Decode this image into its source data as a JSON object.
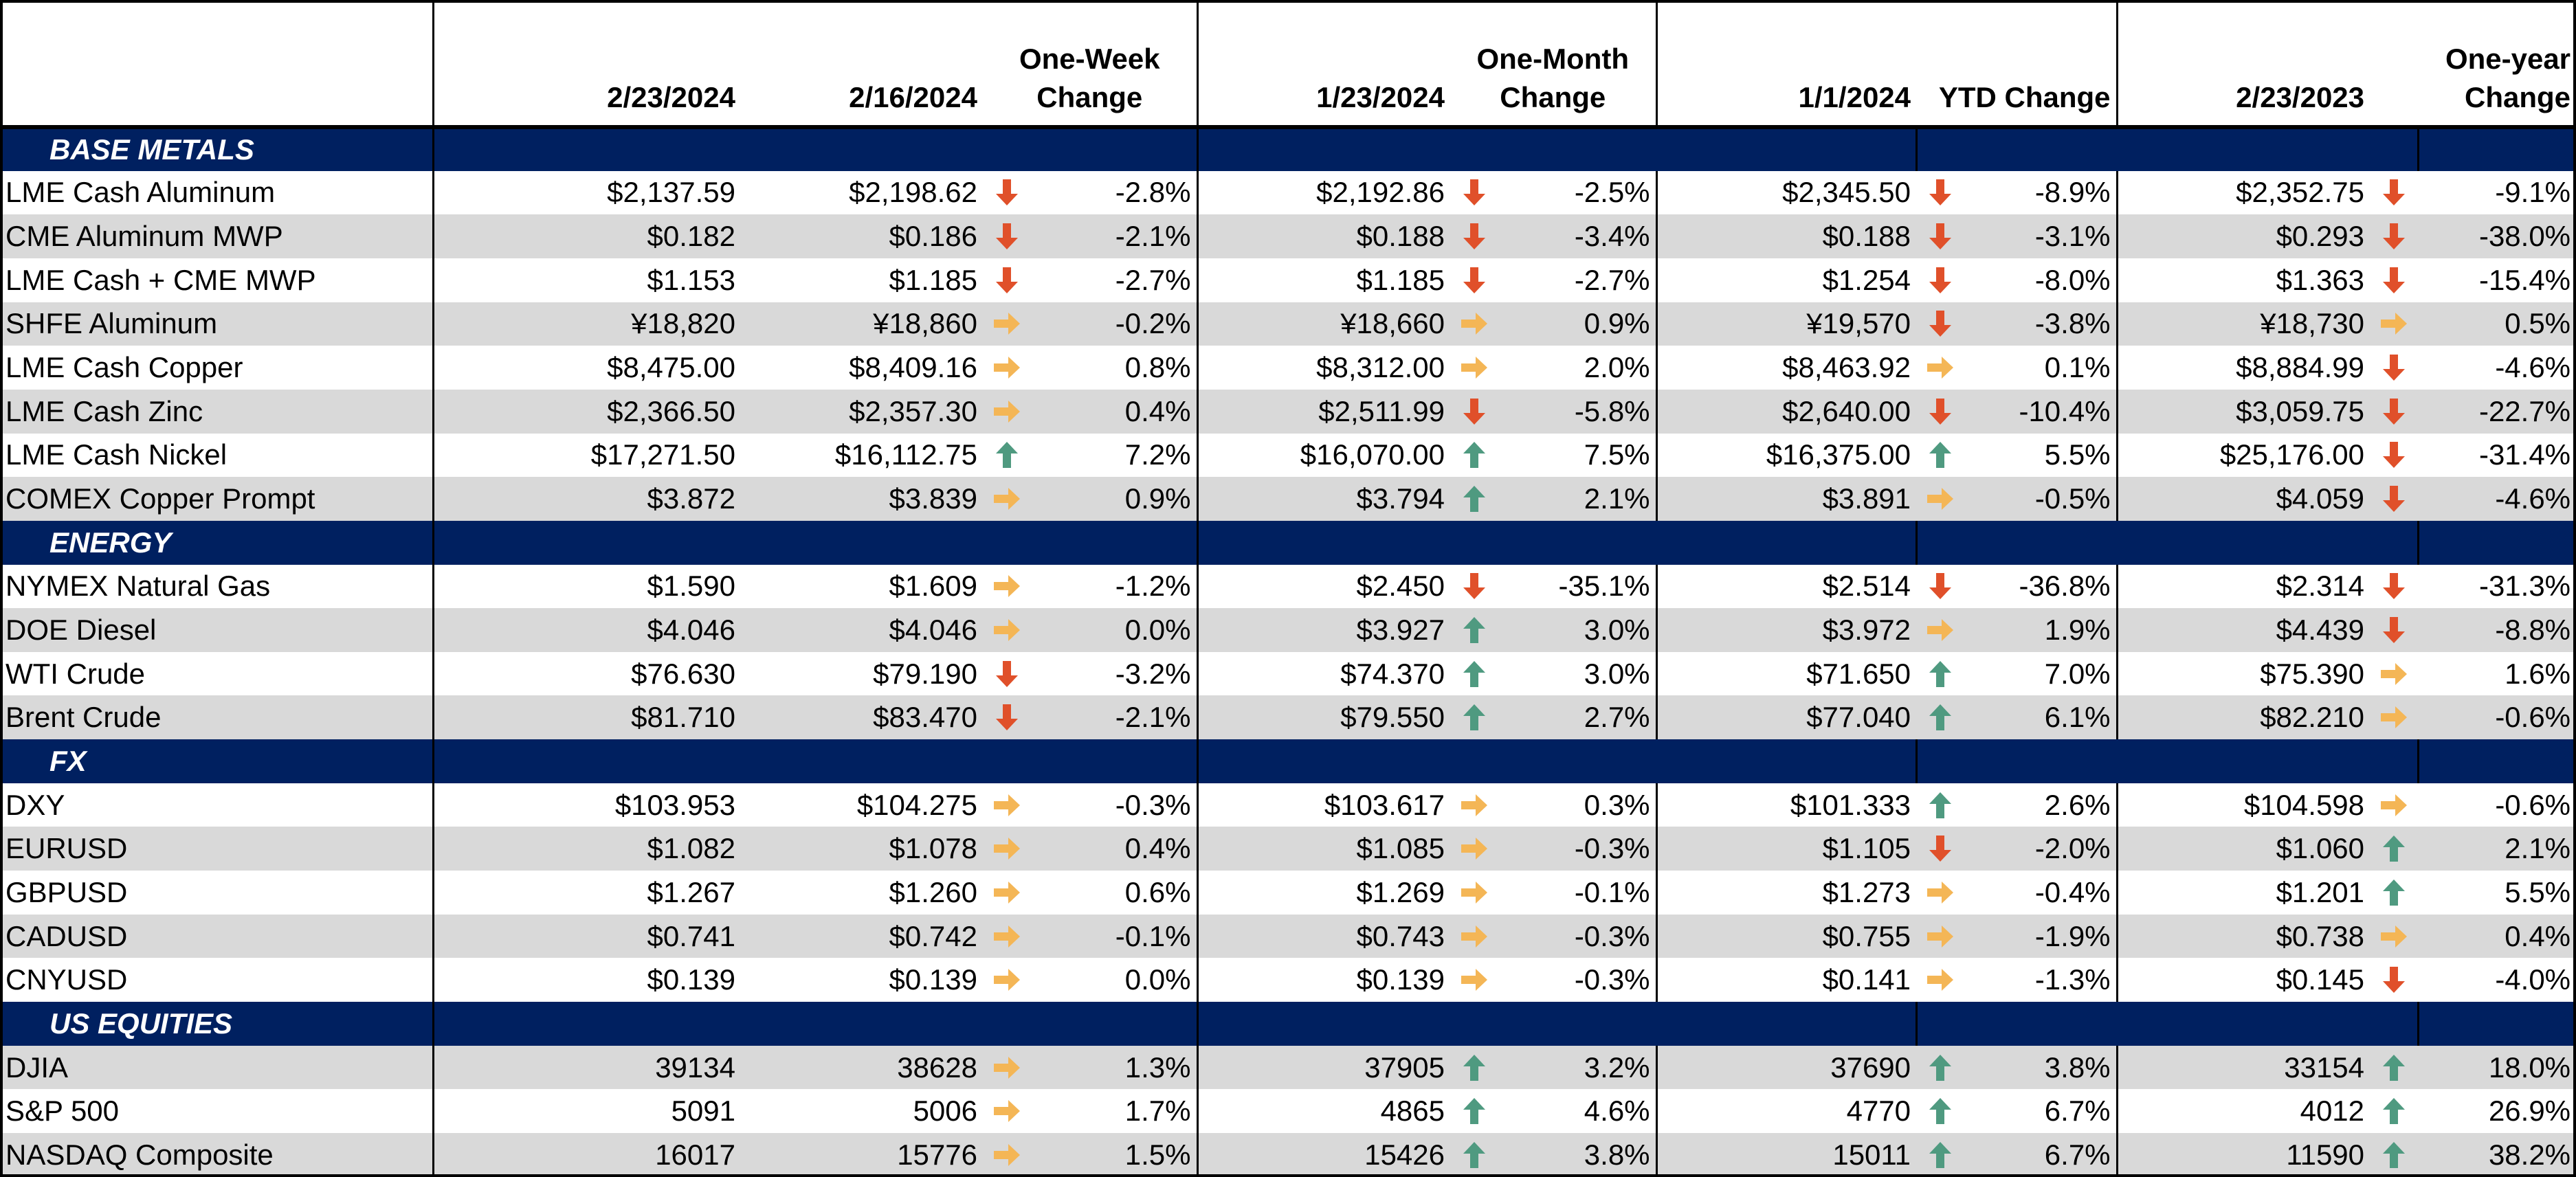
{
  "colors": {
    "header_band": "#002060",
    "alt_row": "#d9d9d9",
    "down_arrow": "#e0502a",
    "flat_arrow": "#f4b656",
    "up_arrow": "#4f9a80"
  },
  "headers": {
    "d0": "2/23/2024",
    "d1": "2/16/2024",
    "wk": [
      "One-Week",
      "Change"
    ],
    "d2": "1/23/2024",
    "mo": [
      "One-Month",
      "Change"
    ],
    "d3": "1/1/2024",
    "ytd": "YTD Change",
    "d4": "2/23/2023",
    "yr": [
      "One-year",
      "Change"
    ]
  },
  "sections": [
    {
      "title": "BASE METALS",
      "rows": [
        {
          "name": "LME Cash Aluminum",
          "v0": "$2,137.59",
          "v1": "$2,198.62",
          "a1": "down-arrow-icon",
          "c1": "-2.8%",
          "v2": "$2,192.86",
          "a2": "down-arrow-icon",
          "c2": "-2.5%",
          "v3": "$2,345.50",
          "a3": "down-arrow-icon",
          "c3": "-8.9%",
          "v4": "$2,352.75",
          "a4": "down-arrow-icon",
          "c4": "-9.1%"
        },
        {
          "name": "CME Aluminum MWP",
          "v0": "$0.182",
          "v1": "$0.186",
          "a1": "down-arrow-icon",
          "c1": "-2.1%",
          "v2": "$0.188",
          "a2": "down-arrow-icon",
          "c2": "-3.4%",
          "v3": "$0.188",
          "a3": "down-arrow-icon",
          "c3": "-3.1%",
          "v4": "$0.293",
          "a4": "down-arrow-icon",
          "c4": "-38.0%"
        },
        {
          "name": "LME Cash + CME MWP",
          "v0": "$1.153",
          "v1": "$1.185",
          "a1": "down-arrow-icon",
          "c1": "-2.7%",
          "v2": "$1.185",
          "a2": "down-arrow-icon",
          "c2": "-2.7%",
          "v3": "$1.254",
          "a3": "down-arrow-icon",
          "c3": "-8.0%",
          "v4": "$1.363",
          "a4": "down-arrow-icon",
          "c4": "-15.4%"
        },
        {
          "name": "SHFE Aluminum",
          "v0": "¥18,820",
          "v1": "¥18,860",
          "a1": "flat-arrow-icon",
          "c1": "-0.2%",
          "v2": "¥18,660",
          "a2": "flat-arrow-icon",
          "c2": "0.9%",
          "v3": "¥19,570",
          "a3": "down-arrow-icon",
          "c3": "-3.8%",
          "v4": "¥18,730",
          "a4": "flat-arrow-icon",
          "c4": "0.5%"
        },
        {
          "name": "LME Cash Copper",
          "v0": "$8,475.00",
          "v1": "$8,409.16",
          "a1": "flat-arrow-icon",
          "c1": "0.8%",
          "v2": "$8,312.00",
          "a2": "flat-arrow-icon",
          "c2": "2.0%",
          "v3": "$8,463.92",
          "a3": "flat-arrow-icon",
          "c3": "0.1%",
          "v4": "$8,884.99",
          "a4": "down-arrow-icon",
          "c4": "-4.6%"
        },
        {
          "name": "LME Cash Zinc",
          "v0": "$2,366.50",
          "v1": "$2,357.30",
          "a1": "flat-arrow-icon",
          "c1": "0.4%",
          "v2": "$2,511.99",
          "a2": "down-arrow-icon",
          "c2": "-5.8%",
          "v3": "$2,640.00",
          "a3": "down-arrow-icon",
          "c3": "-10.4%",
          "v4": "$3,059.75",
          "a4": "down-arrow-icon",
          "c4": "-22.7%"
        },
        {
          "name": "LME Cash Nickel",
          "v0": "$17,271.50",
          "v1": "$16,112.75",
          "a1": "up-arrow-icon",
          "c1": "7.2%",
          "v2": "$16,070.00",
          "a2": "up-arrow-icon",
          "c2": "7.5%",
          "v3": "$16,375.00",
          "a3": "up-arrow-icon",
          "c3": "5.5%",
          "v4": "$25,176.00",
          "a4": "down-arrow-icon",
          "c4": "-31.4%"
        },
        {
          "name": "COMEX Copper Prompt",
          "v0": "$3.872",
          "v1": "$3.839",
          "a1": "flat-arrow-icon",
          "c1": "0.9%",
          "v2": "$3.794",
          "a2": "up-arrow-icon",
          "c2": "2.1%",
          "v3": "$3.891",
          "a3": "flat-arrow-icon",
          "c3": "-0.5%",
          "v4": "$4.059",
          "a4": "down-arrow-icon",
          "c4": "-4.6%"
        }
      ]
    },
    {
      "title": "ENERGY",
      "rows": [
        {
          "name": "NYMEX Natural Gas",
          "v0": "$1.590",
          "v1": "$1.609",
          "a1": "flat-arrow-icon",
          "c1": "-1.2%",
          "v2": "$2.450",
          "a2": "down-arrow-icon",
          "c2": "-35.1%",
          "v3": "$2.514",
          "a3": "down-arrow-icon",
          "c3": "-36.8%",
          "v4": "$2.314",
          "a4": "down-arrow-icon",
          "c4": "-31.3%"
        },
        {
          "name": "DOE Diesel",
          "v0": "$4.046",
          "v1": "$4.046",
          "a1": "flat-arrow-icon",
          "c1": "0.0%",
          "v2": "$3.927",
          "a2": "up-arrow-icon",
          "c2": "3.0%",
          "v3": "$3.972",
          "a3": "flat-arrow-icon",
          "c3": "1.9%",
          "v4": "$4.439",
          "a4": "down-arrow-icon",
          "c4": "-8.8%"
        },
        {
          "name": "WTI Crude",
          "v0": "$76.630",
          "v1": "$79.190",
          "a1": "down-arrow-icon",
          "c1": "-3.2%",
          "v2": "$74.370",
          "a2": "up-arrow-icon",
          "c2": "3.0%",
          "v3": "$71.650",
          "a3": "up-arrow-icon",
          "c3": "7.0%",
          "v4": "$75.390",
          "a4": "flat-arrow-icon",
          "c4": "1.6%"
        },
        {
          "name": "Brent Crude",
          "v0": "$81.710",
          "v1": "$83.470",
          "a1": "down-arrow-icon",
          "c1": "-2.1%",
          "v2": "$79.550",
          "a2": "up-arrow-icon",
          "c2": "2.7%",
          "v3": "$77.040",
          "a3": "up-arrow-icon",
          "c3": "6.1%",
          "v4": "$82.210",
          "a4": "flat-arrow-icon",
          "c4": "-0.6%"
        }
      ]
    },
    {
      "title": "FX",
      "rows": [
        {
          "name": "DXY",
          "v0": "$103.953",
          "v1": "$104.275",
          "a1": "flat-arrow-icon",
          "c1": "-0.3%",
          "v2": "$103.617",
          "a2": "flat-arrow-icon",
          "c2": "0.3%",
          "v3": "$101.333",
          "a3": "up-arrow-icon",
          "c3": "2.6%",
          "v4": "$104.598",
          "a4": "flat-arrow-icon",
          "c4": "-0.6%"
        },
        {
          "name": "EURUSD",
          "v0": "$1.082",
          "v1": "$1.078",
          "a1": "flat-arrow-icon",
          "c1": "0.4%",
          "v2": "$1.085",
          "a2": "flat-arrow-icon",
          "c2": "-0.3%",
          "v3": "$1.105",
          "a3": "down-arrow-icon",
          "c3": "-2.0%",
          "v4": "$1.060",
          "a4": "up-arrow-icon",
          "c4": "2.1%"
        },
        {
          "name": "GBPUSD",
          "v0": "$1.267",
          "v1": "$1.260",
          "a1": "flat-arrow-icon",
          "c1": "0.6%",
          "v2": "$1.269",
          "a2": "flat-arrow-icon",
          "c2": "-0.1%",
          "v3": "$1.273",
          "a3": "flat-arrow-icon",
          "c3": "-0.4%",
          "v4": "$1.201",
          "a4": "up-arrow-icon",
          "c4": "5.5%"
        },
        {
          "name": "CADUSD",
          "v0": "$0.741",
          "v1": "$0.742",
          "a1": "flat-arrow-icon",
          "c1": "-0.1%",
          "v2": "$0.743",
          "a2": "flat-arrow-icon",
          "c2": "-0.3%",
          "v3": "$0.755",
          "a3": "flat-arrow-icon",
          "c3": "-1.9%",
          "v4": "$0.738",
          "a4": "flat-arrow-icon",
          "c4": "0.4%"
        },
        {
          "name": "CNYUSD",
          "v0": "$0.139",
          "v1": "$0.139",
          "a1": "flat-arrow-icon",
          "c1": "0.0%",
          "v2": "$0.139",
          "a2": "flat-arrow-icon",
          "c2": "-0.3%",
          "v3": "$0.141",
          "a3": "flat-arrow-icon",
          "c3": "-1.3%",
          "v4": "$0.145",
          "a4": "down-arrow-icon",
          "c4": "-4.0%"
        }
      ]
    },
    {
      "title": "US EQUITIES",
      "rows": [
        {
          "name": "DJIA",
          "v0": "39134",
          "v1": "38628",
          "a1": "flat-arrow-icon",
          "c1": "1.3%",
          "v2": "37905",
          "a2": "up-arrow-icon",
          "c2": "3.2%",
          "v3": "37690",
          "a3": "up-arrow-icon",
          "c3": "3.8%",
          "v4": "33154",
          "a4": "up-arrow-icon",
          "c4": "18.0%"
        },
        {
          "name": "S&P 500",
          "v0": "5091",
          "v1": "5006",
          "a1": "flat-arrow-icon",
          "c1": "1.7%",
          "v2": "4865",
          "a2": "up-arrow-icon",
          "c2": "4.6%",
          "v3": "4770",
          "a3": "up-arrow-icon",
          "c3": "6.7%",
          "v4": "4012",
          "a4": "up-arrow-icon",
          "c4": "26.9%"
        },
        {
          "name": "NASDAQ Composite",
          "v0": "16017",
          "v1": "15776",
          "a1": "flat-arrow-icon",
          "c1": "1.5%",
          "v2": "15426",
          "a2": "up-arrow-icon",
          "c2": "3.8%",
          "v3": "15011",
          "a3": "up-arrow-icon",
          "c3": "6.7%",
          "v4": "11590",
          "a4": "up-arrow-icon",
          "c4": "38.2%"
        }
      ]
    }
  ]
}
